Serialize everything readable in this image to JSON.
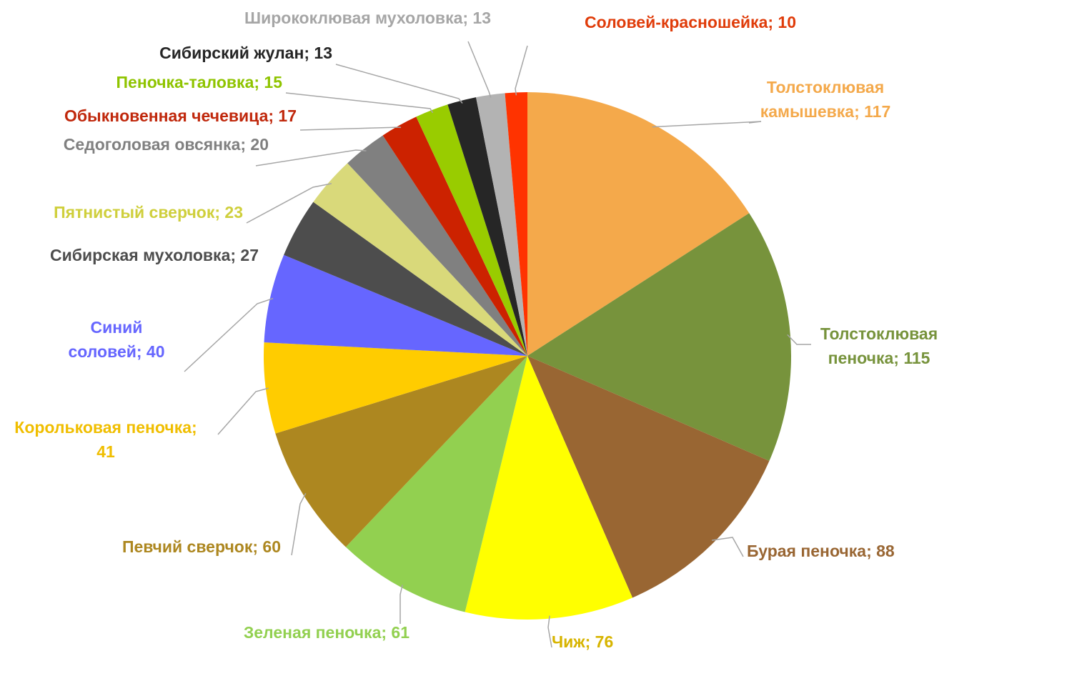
{
  "chart_data": {
    "type": "pie",
    "title": "",
    "legend": "none",
    "start": "top",
    "direction": "clockwise",
    "slices": [
      {
        "name": "Толстоклювая камышевка",
        "value": 117,
        "color": "#F4A94B",
        "label_lines": [
          "Толстоклювая",
          "камышевка; 117"
        ]
      },
      {
        "name": "Толстоклювая пеночка",
        "value": 115,
        "color": "#77933C",
        "label_lines": [
          "Толстоклювая",
          "пеночка; 115"
        ]
      },
      {
        "name": "Бурая пеночка",
        "value": 88,
        "color": "#996633",
        "label_lines": [
          "Бурая пеночка; 88"
        ]
      },
      {
        "name": "Чиж",
        "value": 76,
        "color": "#FFFF00",
        "label_color": "#D7B400",
        "label_lines": [
          "Чиж; 76"
        ]
      },
      {
        "name": "Зеленая пеночка",
        "value": 61,
        "color": "#92D050",
        "label_lines": [
          "Зеленая пеночка; 61"
        ]
      },
      {
        "name": "Певчий сверчок",
        "value": 60,
        "color": "#AD8720",
        "label_lines": [
          "Певчий сверчок; 60"
        ]
      },
      {
        "name": "Корольковая пеночка",
        "value": 41,
        "color": "#FFCC00",
        "label_color": "#F0BE00",
        "label_lines": [
          "Корольковая пеночка;",
          "41"
        ]
      },
      {
        "name": "Синий соловей",
        "value": 40,
        "color": "#6666FF",
        "label_lines": [
          "Синий",
          "соловей; 40"
        ]
      },
      {
        "name": "Сибирская мухоловка",
        "value": 27,
        "color": "#4D4D4D",
        "label_lines": [
          "Сибирская мухоловка; 27"
        ]
      },
      {
        "name": "Пятнистый сверчок",
        "value": 23,
        "color": "#D9D97A",
        "label_color": "#CFCF3C",
        "label_lines": [
          "Пятнистый сверчок; 23"
        ]
      },
      {
        "name": "Седоголовая овсянка",
        "value": 20,
        "color": "#808080",
        "label_lines": [
          "Седоголовая овсянка; 20"
        ]
      },
      {
        "name": "Обыкновенная чечевица",
        "value": 17,
        "color": "#CC2200",
        "label_color": "#C0280C",
        "label_lines": [
          "Обыкновенная чечевица; 17"
        ]
      },
      {
        "name": "Пеночка-таловка",
        "value": 15,
        "color": "#99CC00",
        "label_color": "#8FC400",
        "label_lines": [
          "Пеночка-таловка; 15"
        ]
      },
      {
        "name": "Сибирский жулан",
        "value": 13,
        "color": "#262626",
        "label_lines": [
          "Сибирский жулан; 13"
        ]
      },
      {
        "name": "Ширококлювая мухоловка",
        "value": 13,
        "color": "#B3B3B3",
        "label_color": "#A6A6A6",
        "label_lines": [
          "Ширококлювая мухоловка; 13"
        ]
      },
      {
        "name": "Соловей-красношейка",
        "value": 10,
        "color": "#FF3300",
        "label_color": "#E03C0A",
        "label_lines": [
          "Соловей-красношейка; 10"
        ]
      }
    ]
  }
}
